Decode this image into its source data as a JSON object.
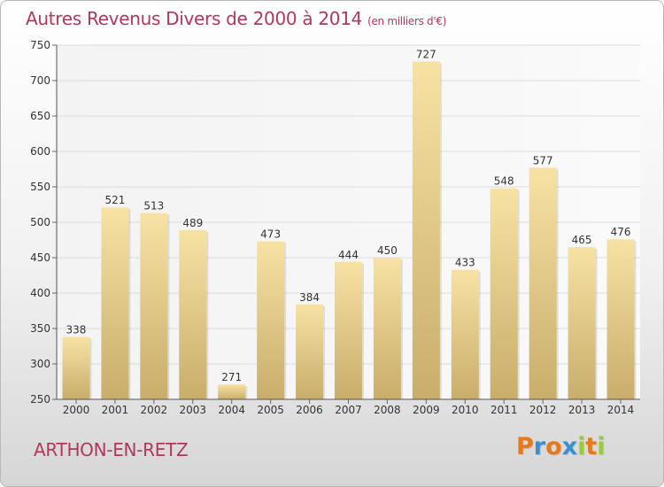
{
  "header": {
    "title": "Autres Revenus Divers de 2000 à 2014",
    "unit": "(en milliers d'€)"
  },
  "footer": {
    "place": "ARTHON-EN-RETZ",
    "logo": {
      "letters": [
        "P",
        "r",
        "o",
        "x",
        "i",
        "t",
        "i"
      ],
      "colors": [
        "#e8791b",
        "#3b8fd1",
        "#e8791b",
        "#3b8fd1",
        "#9acb3c",
        "#e8791b",
        "#9acb3c"
      ]
    }
  },
  "colors": {
    "title": "#b0385a",
    "bar_light": "#f7e2a4",
    "bar_dark": "#c9ad6b",
    "grid": "#dcdcdc"
  },
  "chart_data": {
    "type": "bar",
    "title": "Autres Revenus Divers de 2000 à 2014",
    "subtitle": "(en milliers d'€)",
    "xlabel": "",
    "ylabel": "",
    "categories": [
      "2000",
      "2001",
      "2002",
      "2003",
      "2004",
      "2005",
      "2006",
      "2007",
      "2008",
      "2009",
      "2010",
      "2011",
      "2012",
      "2013",
      "2014"
    ],
    "values": [
      338,
      521,
      513,
      489,
      271,
      473,
      384,
      444,
      450,
      727,
      433,
      548,
      577,
      465,
      476
    ],
    "ylim": [
      250,
      750
    ],
    "yticks": [
      250,
      300,
      350,
      400,
      450,
      500,
      550,
      600,
      650,
      700,
      750
    ],
    "grid": true,
    "data_labels": true
  }
}
